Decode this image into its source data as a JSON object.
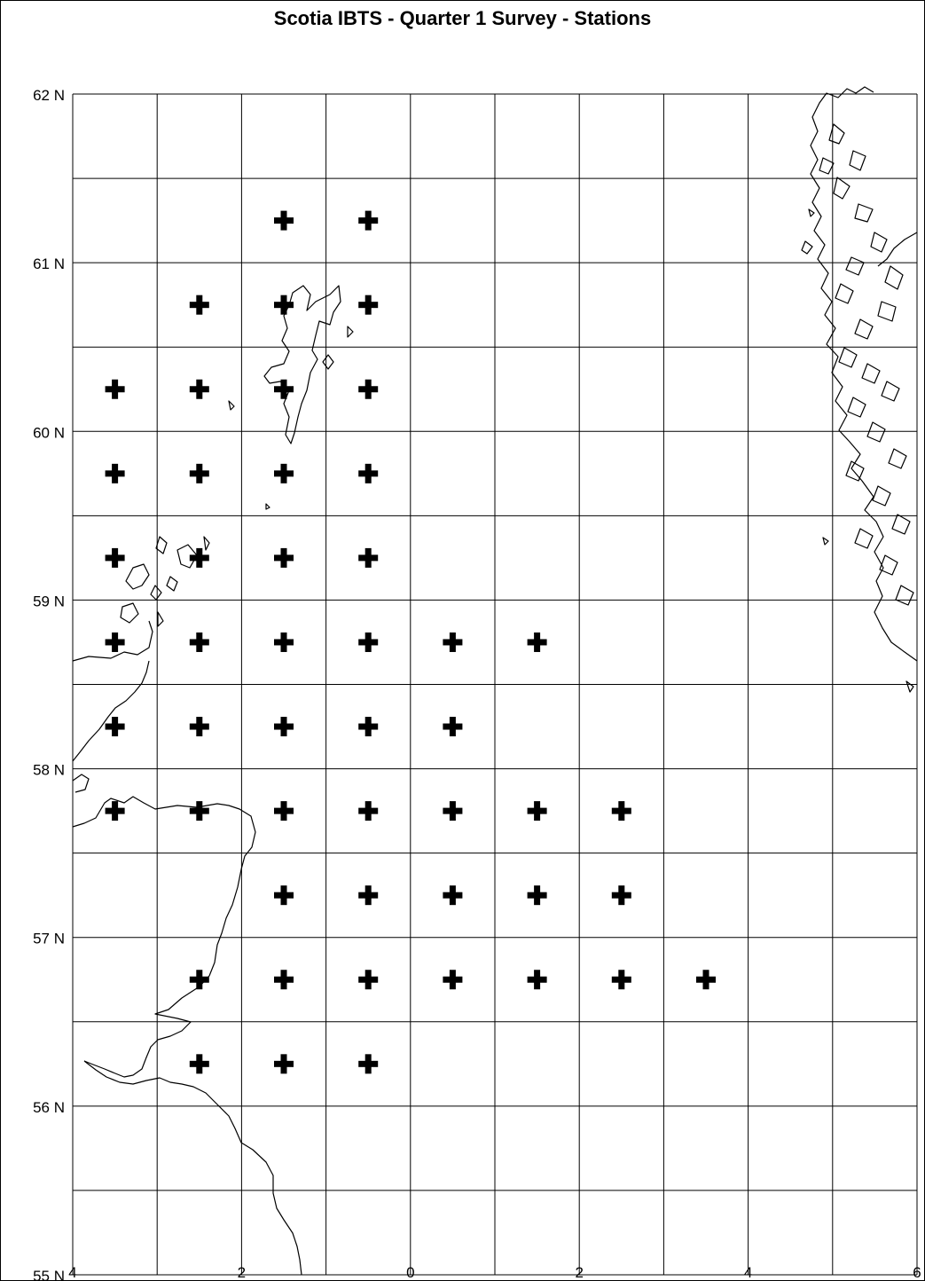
{
  "title": "Scotia IBTS - Quarter 1 Survey - Stations",
  "axes": {
    "x_ticks": [
      {
        "value": -4,
        "label": "4"
      },
      {
        "value": -2,
        "label": "2"
      },
      {
        "value": 0,
        "label": "0"
      },
      {
        "value": 2,
        "label": "2"
      },
      {
        "value": 4,
        "label": "4"
      },
      {
        "value": 6,
        "label": "6"
      }
    ],
    "y_ticks": [
      {
        "value": 55,
        "label": "55 N"
      },
      {
        "value": 56,
        "label": "56 N"
      },
      {
        "value": 57,
        "label": "57 N"
      },
      {
        "value": 58,
        "label": "58 N"
      },
      {
        "value": 59,
        "label": "59 N"
      },
      {
        "value": 60,
        "label": "60 N"
      },
      {
        "value": 61,
        "label": "61 N"
      },
      {
        "value": 62,
        "label": "62 N"
      }
    ],
    "lon_range": [
      -4,
      6
    ],
    "lat_range": [
      55,
      62
    ],
    "grid_lon_step": 1,
    "grid_lat_step": 0.5
  },
  "marker": {
    "symbol": "plus",
    "color": "#000000"
  },
  "stations": [
    {
      "lon": -1.5,
      "lat": 61.25
    },
    {
      "lon": -0.5,
      "lat": 61.25
    },
    {
      "lon": -2.5,
      "lat": 60.75
    },
    {
      "lon": -1.5,
      "lat": 60.75
    },
    {
      "lon": -0.5,
      "lat": 60.75
    },
    {
      "lon": -3.5,
      "lat": 60.25
    },
    {
      "lon": -2.5,
      "lat": 60.25
    },
    {
      "lon": -1.5,
      "lat": 60.25
    },
    {
      "lon": -0.5,
      "lat": 60.25
    },
    {
      "lon": -3.5,
      "lat": 59.75
    },
    {
      "lon": -2.5,
      "lat": 59.75
    },
    {
      "lon": -1.5,
      "lat": 59.75
    },
    {
      "lon": -0.5,
      "lat": 59.75
    },
    {
      "lon": -3.5,
      "lat": 59.25
    },
    {
      "lon": -2.5,
      "lat": 59.25
    },
    {
      "lon": -1.5,
      "lat": 59.25
    },
    {
      "lon": -0.5,
      "lat": 59.25
    },
    {
      "lon": -3.5,
      "lat": 58.75
    },
    {
      "lon": -2.5,
      "lat": 58.75
    },
    {
      "lon": -1.5,
      "lat": 58.75
    },
    {
      "lon": -0.5,
      "lat": 58.75
    },
    {
      "lon": 0.5,
      "lat": 58.75
    },
    {
      "lon": 1.5,
      "lat": 58.75
    },
    {
      "lon": -3.5,
      "lat": 58.25
    },
    {
      "lon": -2.5,
      "lat": 58.25
    },
    {
      "lon": -1.5,
      "lat": 58.25
    },
    {
      "lon": -0.5,
      "lat": 58.25
    },
    {
      "lon": 0.5,
      "lat": 58.25
    },
    {
      "lon": -3.5,
      "lat": 57.75
    },
    {
      "lon": -2.5,
      "lat": 57.75
    },
    {
      "lon": -1.5,
      "lat": 57.75
    },
    {
      "lon": -0.5,
      "lat": 57.75
    },
    {
      "lon": 0.5,
      "lat": 57.75
    },
    {
      "lon": 1.5,
      "lat": 57.75
    },
    {
      "lon": 2.5,
      "lat": 57.75
    },
    {
      "lon": -1.5,
      "lat": 57.25
    },
    {
      "lon": -0.5,
      "lat": 57.25
    },
    {
      "lon": 0.5,
      "lat": 57.25
    },
    {
      "lon": 1.5,
      "lat": 57.25
    },
    {
      "lon": 2.5,
      "lat": 57.25
    },
    {
      "lon": -2.5,
      "lat": 56.75
    },
    {
      "lon": -1.5,
      "lat": 56.75
    },
    {
      "lon": -0.5,
      "lat": 56.75
    },
    {
      "lon": 0.5,
      "lat": 56.75
    },
    {
      "lon": 1.5,
      "lat": 56.75
    },
    {
      "lon": 2.5,
      "lat": 56.75
    },
    {
      "lon": 3.5,
      "lat": 56.75
    },
    {
      "lon": -2.5,
      "lat": 56.25
    },
    {
      "lon": -1.5,
      "lat": 56.25
    },
    {
      "lon": -0.5,
      "lat": 56.25
    }
  ]
}
